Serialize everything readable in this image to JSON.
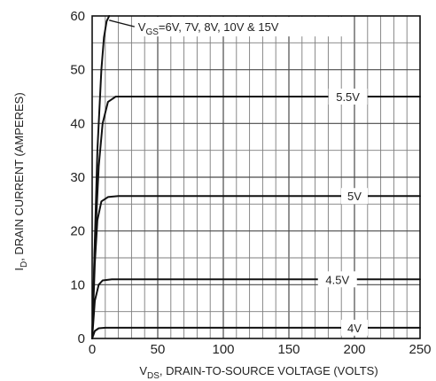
{
  "chart_data": {
    "type": "line",
    "title": "",
    "xlabel": {
      "prefix": "V",
      "subscript": "DS",
      "text": ", DRAIN-TO-SOURCE VOLTAGE (VOLTS)"
    },
    "ylabel": {
      "prefix": "I",
      "subscript": "D",
      "text": ", DRAIN CURRENT (AMPERES)"
    },
    "xlim": [
      0,
      250
    ],
    "ylim": [
      0,
      60
    ],
    "x_ticks": [
      "0",
      "50",
      "100",
      "150",
      "200",
      "250"
    ],
    "y_ticks": [
      "0",
      "10",
      "20",
      "30",
      "40",
      "50",
      "60"
    ],
    "grid": true,
    "series": [
      {
        "name": "4V",
        "label_x": 200,
        "label_at_y": 2,
        "points": [
          [
            0,
            0
          ],
          [
            2,
            1.4
          ],
          [
            5,
            1.9
          ],
          [
            10,
            2
          ],
          [
            250,
            2
          ]
        ]
      },
      {
        "name": "4.5V",
        "label_x": 187,
        "label_at_y": 11,
        "points": [
          [
            0,
            0
          ],
          [
            2,
            7
          ],
          [
            5,
            10
          ],
          [
            8,
            10.8
          ],
          [
            15,
            11
          ],
          [
            250,
            11
          ]
        ]
      },
      {
        "name": "5V",
        "label_x": 200,
        "label_at_y": 26.5,
        "points": [
          [
            0,
            0
          ],
          [
            2,
            14
          ],
          [
            4,
            22
          ],
          [
            7,
            25.5
          ],
          [
            12,
            26.3
          ],
          [
            20,
            26.5
          ],
          [
            250,
            26.5
          ]
        ]
      },
      {
        "name": "5.5V",
        "label_x": 195,
        "label_at_y": 45,
        "points": [
          [
            0,
            0
          ],
          [
            2,
            17
          ],
          [
            5,
            32
          ],
          [
            8,
            40
          ],
          [
            12,
            44
          ],
          [
            18,
            45
          ],
          [
            250,
            45
          ]
        ]
      },
      {
        "name": "V_GS=6V, 7V, 8V, 10V & 15V",
        "label_x": 35,
        "label_at_y": 58,
        "points": [
          [
            0,
            0
          ],
          [
            2,
            18
          ],
          [
            4,
            35
          ],
          [
            7,
            50
          ],
          [
            9,
            56
          ],
          [
            11,
            59
          ],
          [
            13,
            60
          ]
        ]
      }
    ],
    "label_texts": {
      "top": {
        "prefix": "V",
        "subscript": "GS",
        "text": "=6V, 7V, 8V, 10V & 15V"
      },
      "l55": "5.5V",
      "l5": "5V",
      "l45": "4.5V",
      "l4": "4V"
    }
  }
}
